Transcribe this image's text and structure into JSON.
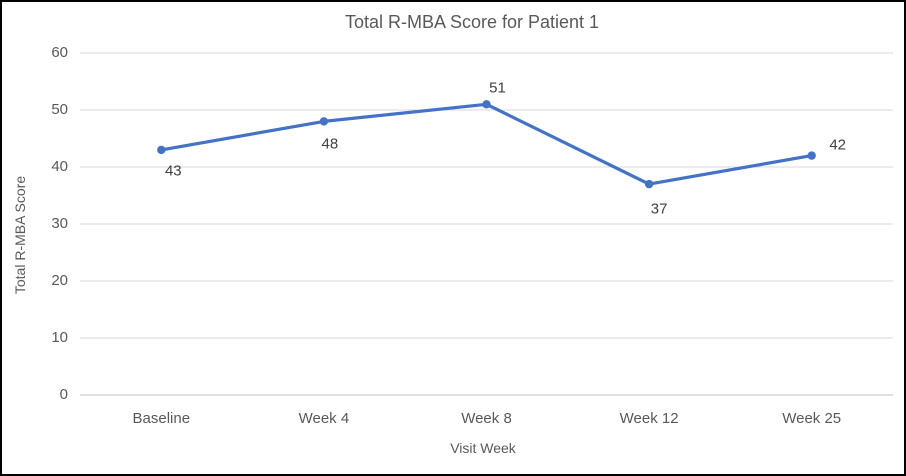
{
  "chart_data": {
    "type": "line",
    "title": "Total R-MBA Score for Patient 1",
    "xlabel": "Visit Week",
    "ylabel": "Total R-MBA Score",
    "categories": [
      "Baseline",
      "Week 4",
      "Week 8",
      "Week 12",
      "Week 25"
    ],
    "values": [
      43,
      48,
      51,
      37,
      42
    ],
    "data_labels": [
      43,
      48,
      51,
      37,
      42
    ],
    "data_label_positions": [
      "below",
      "below",
      "above",
      "below",
      "above"
    ],
    "ylim": [
      0,
      60
    ],
    "yticks": [
      0,
      10,
      20,
      30,
      40,
      50,
      60
    ],
    "grid": true,
    "legend": "none",
    "marker": "circle",
    "colors": {
      "series": "#4472C4",
      "gridline": "#D9D9D9",
      "axis_line": "#BFBFBF",
      "tick_text": "#595959",
      "title_text": "#595959",
      "data_label_text": "#404040",
      "border": "#000000",
      "background": "#FFFFFF"
    }
  }
}
